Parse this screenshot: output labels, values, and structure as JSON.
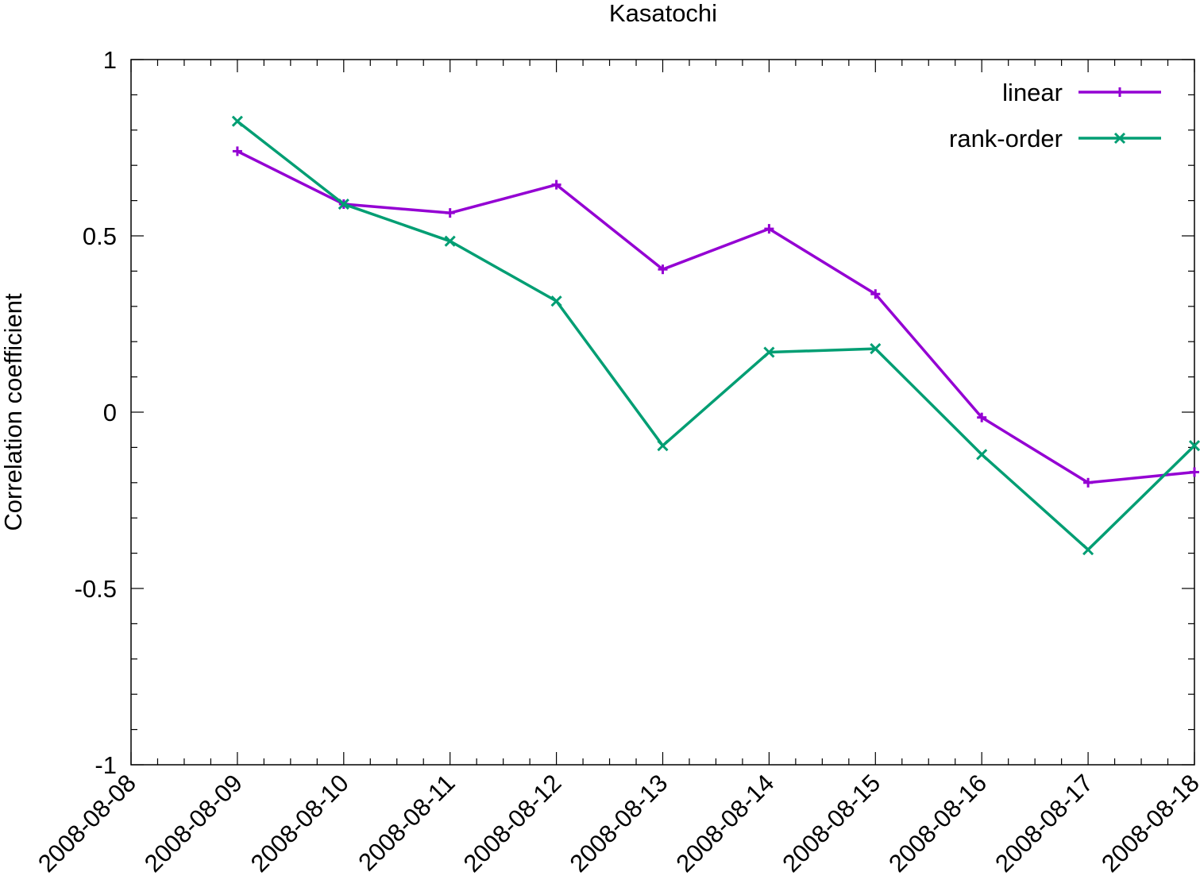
{
  "chart_data": {
    "type": "line",
    "title": "Kasatochi",
    "xlabel": "",
    "ylabel": "Correlation coefficient",
    "ylim": [
      -1,
      1
    ],
    "yticks": [
      "1",
      "0.5",
      "0",
      "-0.5",
      "-1"
    ],
    "y_tick_values": [
      1,
      0.5,
      0,
      -0.5,
      -1
    ],
    "xlim": [
      "2008-08-08",
      "2008-08-18"
    ],
    "xticks": [
      "2008-08-08",
      "2008-08-09",
      "2008-08-10",
      "2008-08-11",
      "2008-08-12",
      "2008-08-13",
      "2008-08-14",
      "2008-08-15",
      "2008-08-16",
      "2008-08-17",
      "2008-08-18"
    ],
    "x": [
      "2008-08-09",
      "2008-08-10",
      "2008-08-11",
      "2008-08-12",
      "2008-08-13",
      "2008-08-14",
      "2008-08-15",
      "2008-08-16",
      "2008-08-17",
      "2008-08-18"
    ],
    "grid": false,
    "legend_position": "top-right",
    "series": [
      {
        "name": "linear",
        "color": "#9400d3",
        "marker": "plus",
        "values": [
          0.74,
          0.59,
          0.565,
          0.645,
          0.405,
          0.52,
          0.335,
          -0.015,
          -0.2,
          -0.17
        ]
      },
      {
        "name": "rank-order",
        "color": "#009e73",
        "marker": "cross",
        "values": [
          0.825,
          0.59,
          0.485,
          0.315,
          -0.095,
          0.17,
          0.18,
          -0.12,
          -0.39,
          -0.095
        ]
      }
    ]
  }
}
